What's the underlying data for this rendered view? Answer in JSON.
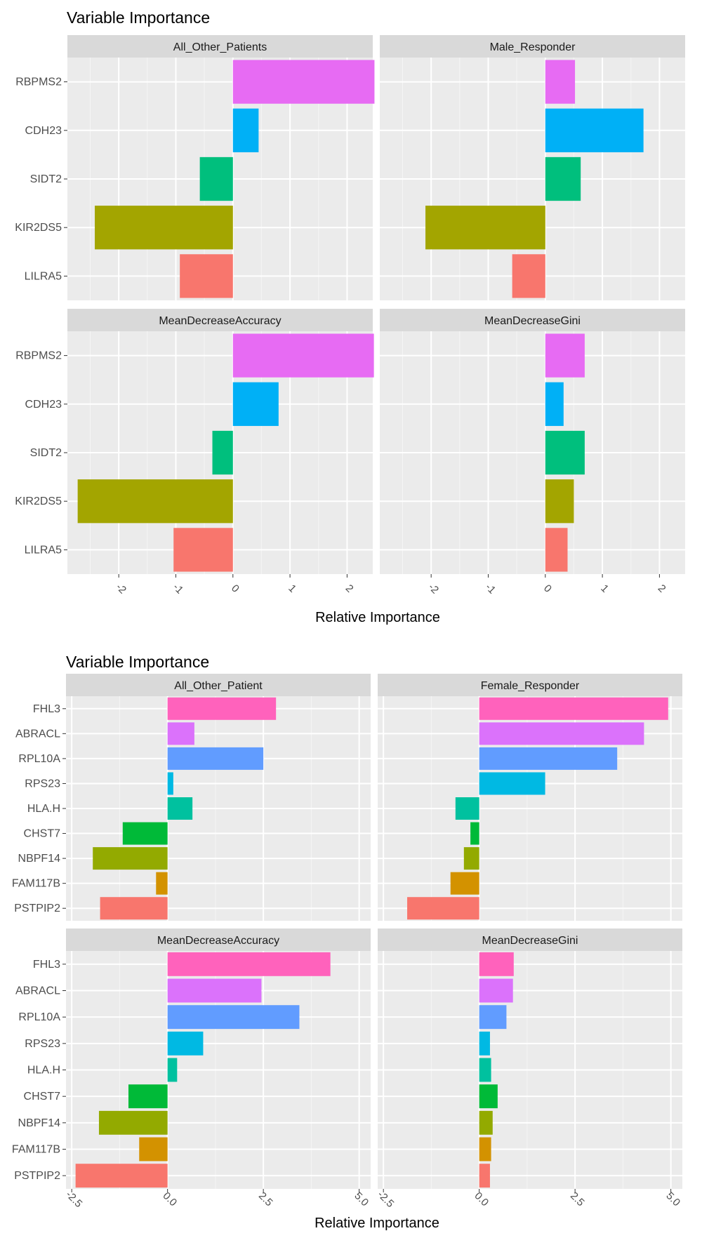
{
  "chart_data": [
    {
      "type": "bar",
      "orientation": "horizontal",
      "title": "Variable Importance",
      "xlabel": "Relative Importance",
      "ylabel": "",
      "categories": [
        "RBPMS2",
        "CDH23",
        "SIDT2",
        "KIR2DS5",
        "LILRA5"
      ],
      "colors": [
        "#E76BF3",
        "#00B0F6",
        "#00BF7D",
        "#A3A500",
        "#F8766D"
      ],
      "xlim": [
        -2.9,
        2.45
      ],
      "xticks": [
        -2,
        -1,
        0,
        1,
        2
      ],
      "xtick_labels": [
        "-2",
        "-1",
        "0",
        "1",
        "2"
      ],
      "grid": true,
      "panels": [
        {
          "name": "All_Other_Patients",
          "values": [
            2.48,
            0.45,
            -0.58,
            -2.42,
            -0.93
          ]
        },
        {
          "name": "Male_Responder",
          "values": [
            0.52,
            1.72,
            0.62,
            -2.1,
            -0.58
          ]
        },
        {
          "name": "MeanDecreaseAccuracy",
          "values": [
            2.47,
            0.8,
            -0.36,
            -2.72,
            -1.04
          ]
        },
        {
          "name": "MeanDecreaseGini",
          "values": [
            0.69,
            0.32,
            0.69,
            0.5,
            0.39
          ]
        }
      ]
    },
    {
      "type": "bar",
      "orientation": "horizontal",
      "title": "Variable Importance",
      "xlabel": "Relative Importance",
      "ylabel": "",
      "categories": [
        "FHL3",
        "ABRACL",
        "RPL10A",
        "RPS23",
        "HLA.H",
        "CHST7",
        "NBPF14",
        "FAM117B",
        "PSTPIP2"
      ],
      "colors": [
        "#FF62BC",
        "#DB72FB",
        "#619CFF",
        "#00B9E3",
        "#00C19F",
        "#00BA38",
        "#93AA00",
        "#D39200",
        "#F8766D"
      ],
      "xlim": [
        -2.65,
        5.3
      ],
      "xticks": [
        -2.5,
        0,
        2.5,
        5
      ],
      "xtick_labels": [
        "-2.5",
        "0.0",
        "2.5",
        "5.0"
      ],
      "grid": true,
      "panels": [
        {
          "name": "All_Other_Patient",
          "values": [
            2.83,
            0.7,
            2.5,
            0.15,
            0.65,
            -1.17,
            -1.95,
            -0.3,
            -1.76
          ]
        },
        {
          "name": "Female_Responder",
          "values": [
            4.93,
            4.3,
            3.6,
            1.72,
            -0.62,
            -0.23,
            -0.4,
            -0.75,
            -1.88
          ]
        },
        {
          "name": "MeanDecreaseAccuracy",
          "values": [
            4.25,
            2.45,
            3.44,
            0.93,
            0.25,
            -1.02,
            -1.79,
            -0.74,
            -2.4
          ]
        },
        {
          "name": "MeanDecreaseGini",
          "values": [
            0.9,
            0.88,
            0.71,
            0.28,
            0.31,
            0.48,
            0.35,
            0.31,
            0.28
          ]
        }
      ]
    }
  ]
}
